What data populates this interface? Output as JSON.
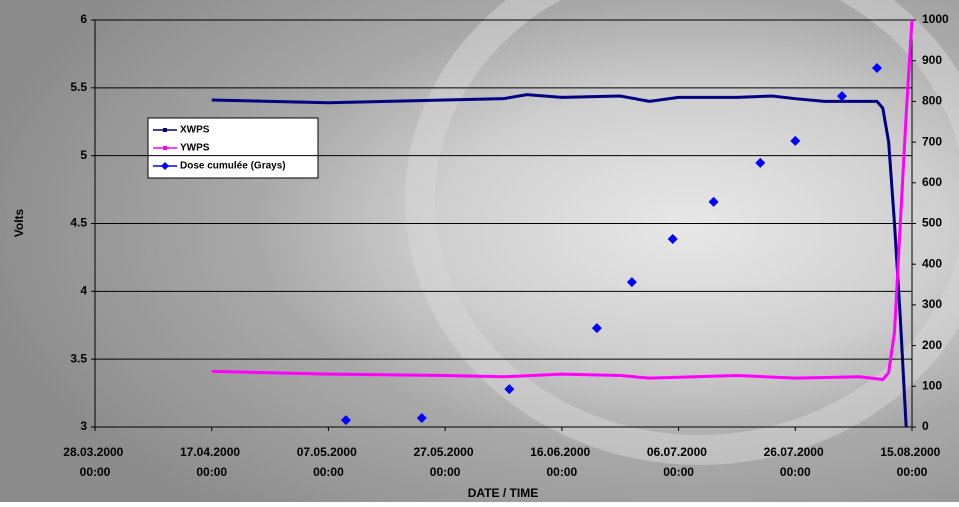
{
  "chart_data": {
    "type": "line",
    "y_label": "Volts",
    "x_label": "DATE / TIME",
    "xlim": [
      "2000-03-28T00:00",
      "2000-08-15T00:00"
    ],
    "xticks": [
      {
        "value": "2000-03-28T00:00",
        "label": "28.03.2000 00:00"
      },
      {
        "value": "2000-04-17T00:00",
        "label": "17.04.2000 00:00"
      },
      {
        "value": "2000-05-07T00:00",
        "label": "07.05.2000 00:00"
      },
      {
        "value": "2000-05-27T00:00",
        "label": "27.05.2000 00:00"
      },
      {
        "value": "2000-06-16T00:00",
        "label": "16.06.2000 00:00"
      },
      {
        "value": "2000-07-06T00:00",
        "label": "06.07.2000 00:00"
      },
      {
        "value": "2000-07-26T00:00",
        "label": "26.07.2000 00:00"
      },
      {
        "value": "2000-08-15T00:00",
        "label": "15.08.2000 00:00"
      }
    ],
    "ylim": [
      3,
      6
    ],
    "yticks": [
      3,
      3.5,
      4,
      4.5,
      5,
      5.5,
      6
    ],
    "y2lim": [
      0,
      1000
    ],
    "y2ticks": [
      0,
      100,
      200,
      300,
      400,
      500,
      600,
      700,
      800,
      900,
      1000
    ],
    "grid": true,
    "series": [
      {
        "name": "XWPS",
        "color": "#000080",
        "style": "line",
        "x": [
          "2000-04-17",
          "2000-04-27",
          "2000-05-07",
          "2000-05-17",
          "2000-05-27",
          "2000-06-06",
          "2000-06-10",
          "2000-06-16",
          "2000-06-26",
          "2000-07-01",
          "2000-07-06",
          "2000-07-16",
          "2000-07-22",
          "2000-07-26",
          "2000-07-31",
          "2000-08-09",
          "2000-08-10",
          "2000-08-11",
          "2000-08-12",
          "2000-08-13",
          "2000-08-14"
        ],
        "values": [
          5.41,
          5.4,
          5.39,
          5.4,
          5.41,
          5.42,
          5.45,
          5.43,
          5.44,
          5.4,
          5.43,
          5.43,
          5.44,
          5.42,
          5.4,
          5.4,
          5.35,
          5.1,
          4.5,
          3.8,
          3.0
        ]
      },
      {
        "name": "YWPS",
        "color": "#ff00ff",
        "style": "line",
        "x": [
          "2000-04-17",
          "2000-05-07",
          "2000-05-27",
          "2000-06-06",
          "2000-06-16",
          "2000-06-26",
          "2000-07-01",
          "2000-07-16",
          "2000-07-26",
          "2000-08-06",
          "2000-08-10",
          "2000-08-11",
          "2000-08-12",
          "2000-08-13",
          "2000-08-14",
          "2000-08-15"
        ],
        "values": [
          3.41,
          3.39,
          3.38,
          3.37,
          3.39,
          3.38,
          3.36,
          3.38,
          3.36,
          3.37,
          3.35,
          3.4,
          3.7,
          4.5,
          5.3,
          6.0
        ]
      },
      {
        "name": "Dose cumulée (Grays)",
        "color": "#0000ff",
        "style": "markers",
        "axis": "y2",
        "x": [
          "2000-05-10",
          "2000-05-23",
          "2000-06-07",
          "2000-06-22",
          "2000-06-28",
          "2000-07-05",
          "2000-07-12",
          "2000-07-20",
          "2000-07-26",
          "2000-08-03",
          "2000-08-09"
        ],
        "values": [
          17,
          22,
          93,
          243,
          356,
          462,
          553,
          649,
          703,
          813,
          882
        ]
      }
    ]
  }
}
